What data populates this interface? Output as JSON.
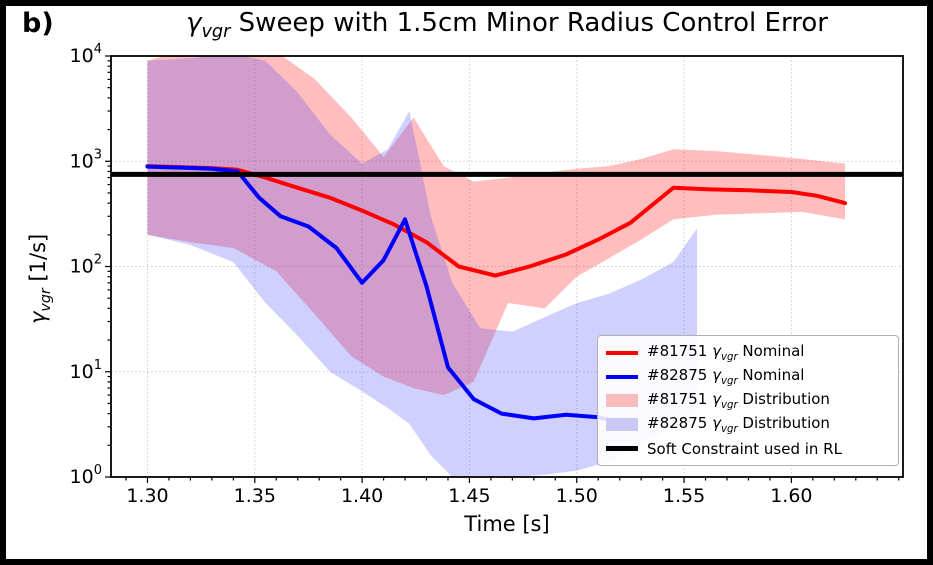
{
  "panel_label": "b)",
  "title": {
    "gamma": "γ",
    "sub": "vgr",
    "rest": " Sweep with 1.5cm Minor Radius Control Error"
  },
  "ylabel": {
    "gamma": "γ",
    "sub": "vgr",
    "rest": " [1/s]"
  },
  "chart_data": {
    "type": "line",
    "title": "γvgr Sweep with 1.5cm Minor Radius Control Error",
    "xlabel": "Time [s]",
    "ylabel": "γvgr [1/s]",
    "x_axis": {
      "min": 1.283,
      "max": 1.652,
      "ticks": [
        {
          "v": 1.3,
          "label": "1.30"
        },
        {
          "v": 1.35,
          "label": "1.35"
        },
        {
          "v": 1.4,
          "label": "1.40"
        },
        {
          "v": 1.45,
          "label": "1.45"
        },
        {
          "v": 1.5,
          "label": "1.50"
        },
        {
          "v": 1.55,
          "label": "1.55"
        },
        {
          "v": 1.6,
          "label": "1.60"
        }
      ],
      "minor_step": 0.01
    },
    "y_axis": {
      "scale": "log",
      "min_exp": 0,
      "max_exp": 4,
      "base_label": "10",
      "tick_exponents": [
        0,
        1,
        2,
        3,
        4
      ]
    },
    "grid": true,
    "soft_constraint": {
      "value": 750,
      "color": "#000000",
      "width": 5
    },
    "series": [
      {
        "name": "#81751 γvgr Nominal",
        "color": "#ff0000",
        "width": 4,
        "x": [
          1.3,
          1.315,
          1.33,
          1.342,
          1.355,
          1.37,
          1.385,
          1.4,
          1.415,
          1.43,
          1.445,
          1.462,
          1.478,
          1.495,
          1.51,
          1.525,
          1.545,
          1.562,
          1.58,
          1.6,
          1.612,
          1.625
        ],
        "y": [
          900,
          880,
          860,
          830,
          700,
          560,
          450,
          340,
          250,
          170,
          100,
          82,
          100,
          130,
          180,
          260,
          560,
          540,
          530,
          510,
          470,
          400
        ]
      },
      {
        "name": "#82875 γvgr Nominal",
        "color": "#0000ff",
        "width": 4,
        "x": [
          1.3,
          1.315,
          1.33,
          1.342,
          1.352,
          1.362,
          1.375,
          1.388,
          1.4,
          1.41,
          1.42,
          1.43,
          1.44,
          1.452,
          1.465,
          1.48,
          1.495,
          1.51,
          1.52
        ],
        "y": [
          890,
          870,
          850,
          800,
          450,
          300,
          240,
          150,
          70,
          115,
          280,
          65,
          11,
          5.5,
          4.0,
          3.6,
          3.9,
          3.7,
          3.3
        ]
      }
    ],
    "bands": [
      {
        "name": "#81751 γvgr Distribution",
        "color": "rgba(255,0,0,0.26)",
        "x": [
          1.3,
          1.32,
          1.34,
          1.36,
          1.378,
          1.395,
          1.41,
          1.424,
          1.438,
          1.452,
          1.468,
          1.485,
          1.5,
          1.515,
          1.53,
          1.545,
          1.565,
          1.585,
          1.605,
          1.625
        ],
        "hi": [
          9000,
          12000,
          13000,
          11000,
          6000,
          2600,
          1100,
          2600,
          900,
          640,
          700,
          780,
          850,
          900,
          1050,
          1300,
          1250,
          1150,
          1050,
          950
        ],
        "lo": [
          200,
          170,
          150,
          90,
          35,
          14,
          9,
          7,
          6,
          8,
          45,
          40,
          80,
          120,
          180,
          280,
          310,
          320,
          330,
          280
        ]
      },
      {
        "name": "#82875 γvgr Distribution",
        "color": "rgba(60,60,255,0.24)",
        "x": [
          1.3,
          1.32,
          1.34,
          1.355,
          1.37,
          1.385,
          1.4,
          1.412,
          1.422,
          1.432,
          1.442,
          1.455,
          1.47,
          1.485,
          1.5,
          1.515,
          1.53,
          1.545,
          1.556
        ],
        "hi": [
          9000,
          9500,
          10500,
          9000,
          4500,
          1800,
          950,
          1300,
          3000,
          300,
          70,
          26,
          24,
          33,
          45,
          55,
          75,
          110,
          230
        ],
        "lo": [
          200,
          160,
          110,
          45,
          22,
          10,
          6.5,
          4.5,
          3.2,
          1.6,
          1.0,
          1.0,
          1.0,
          1.05,
          1.15,
          1.4,
          2.0,
          3.0,
          4.5
        ]
      }
    ],
    "legend": {
      "position": "lower right",
      "items": [
        {
          "prefix": "#81751 ",
          "gamma": "γ",
          "sub": "vgr",
          "suffix": " Nominal",
          "swatch": "line",
          "color": "#ff0000",
          "swatch_height": 4
        },
        {
          "prefix": "#82875 ",
          "gamma": "γ",
          "sub": "vgr",
          "suffix": " Nominal",
          "swatch": "line",
          "color": "#0000ff",
          "swatch_height": 4
        },
        {
          "prefix": "#81751 ",
          "gamma": "γ",
          "sub": "vgr",
          "suffix": " Distribution",
          "swatch": "patch",
          "color": "#f7bcbc",
          "swatch_height": 13
        },
        {
          "prefix": "#82875 ",
          "gamma": "γ",
          "sub": "vgr",
          "suffix": " Distribution",
          "swatch": "patch",
          "color": "#c9c9f3",
          "swatch_height": 13
        },
        {
          "prefix": "Soft Constraint used in RL",
          "gamma": "",
          "sub": "",
          "suffix": "",
          "swatch": "line",
          "color": "#000000",
          "swatch_height": 5
        }
      ]
    }
  }
}
